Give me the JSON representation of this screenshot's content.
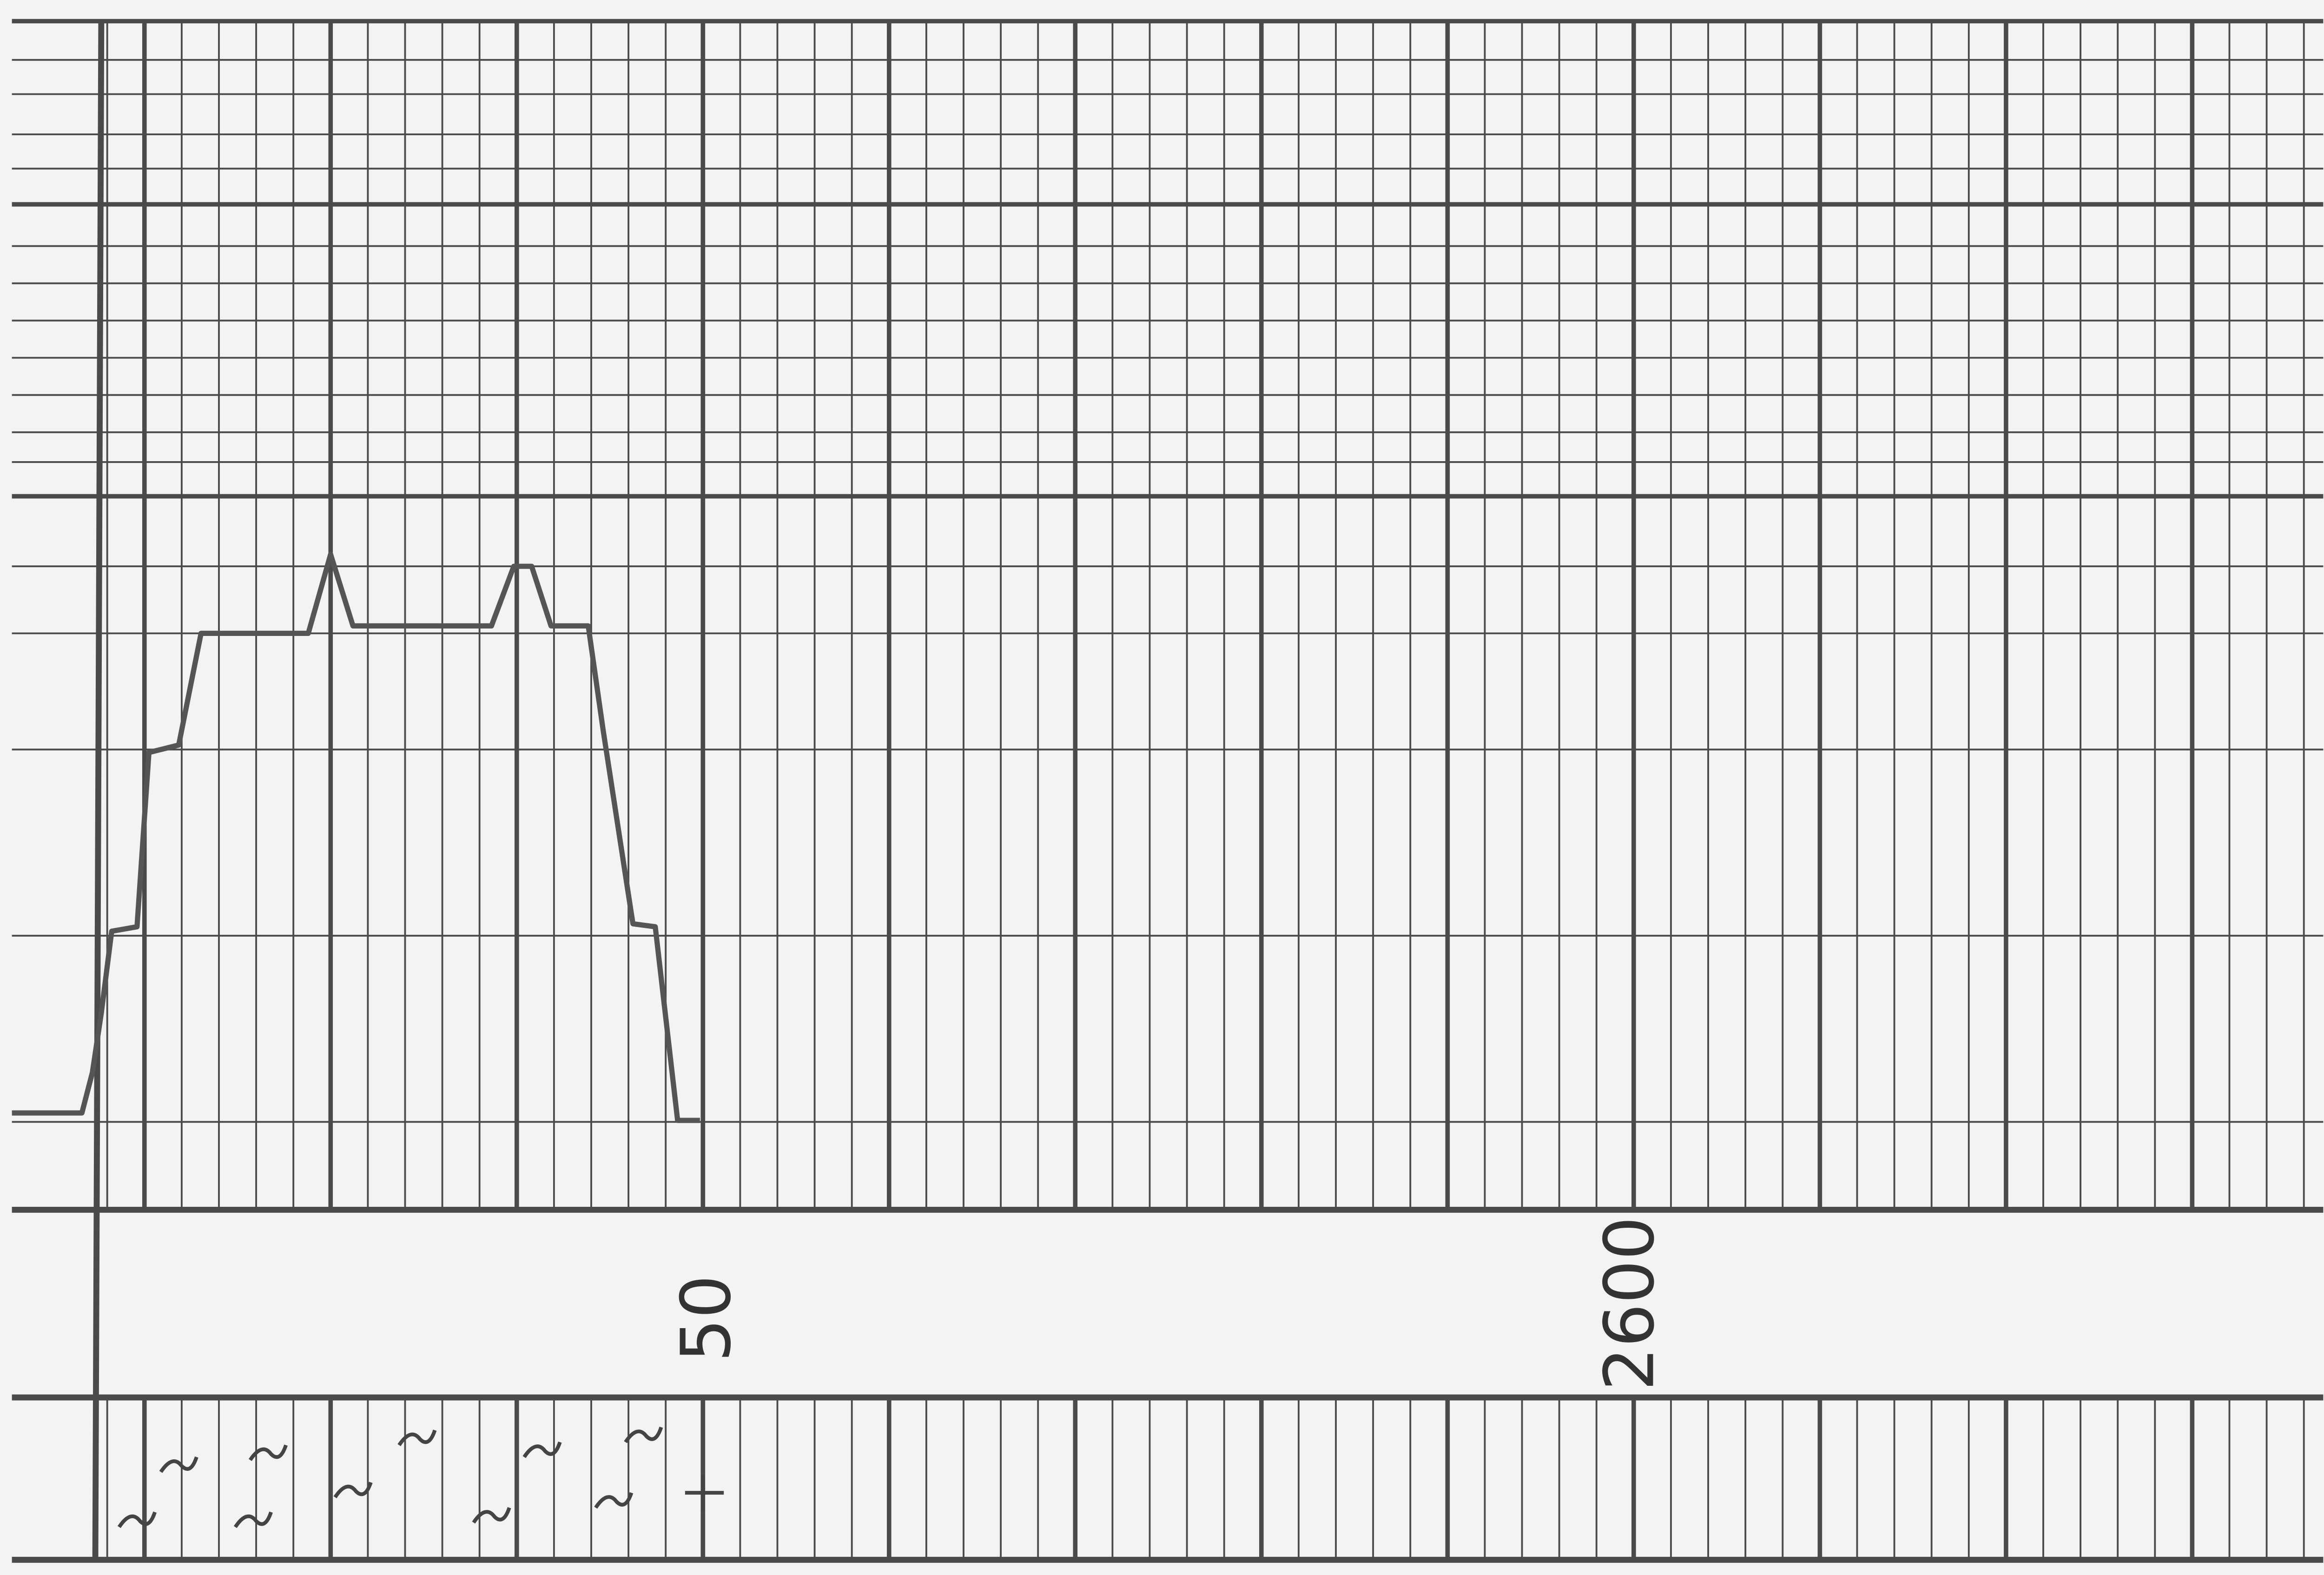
{
  "labels": {
    "left": "50",
    "right": "2600"
  }
}
